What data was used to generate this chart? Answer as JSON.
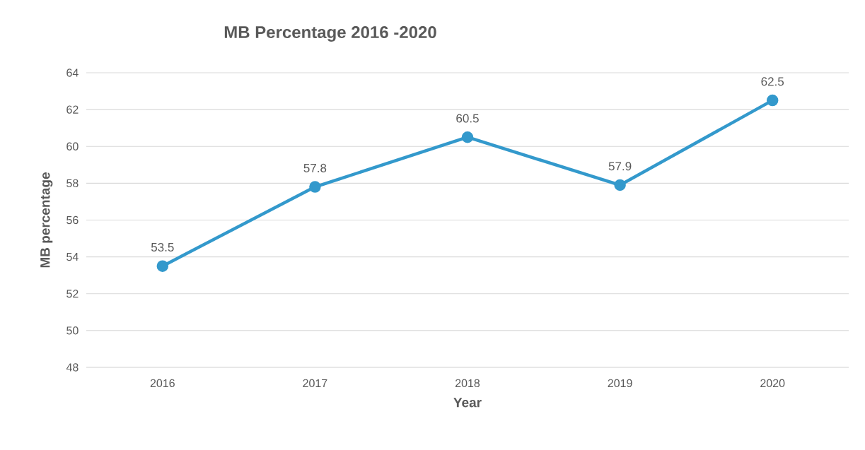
{
  "chart_data": {
    "type": "line",
    "title": "MB Percentage  2016 -2020",
    "xlabel": "Year",
    "ylabel": "MB  percentage",
    "categories": [
      "2016",
      "2017",
      "2018",
      "2019",
      "2020"
    ],
    "series": [
      {
        "color": "#3399cc",
        "values": [
          53.5,
          57.8,
          60.5,
          57.9,
          62.5
        ]
      }
    ],
    "ylim": [
      48,
      64
    ],
    "yticks": [
      48,
      50,
      52,
      54,
      56,
      58,
      60,
      62,
      64
    ],
    "grid": "y",
    "marker": "circle",
    "line_style": "solid",
    "data_labels": true
  }
}
